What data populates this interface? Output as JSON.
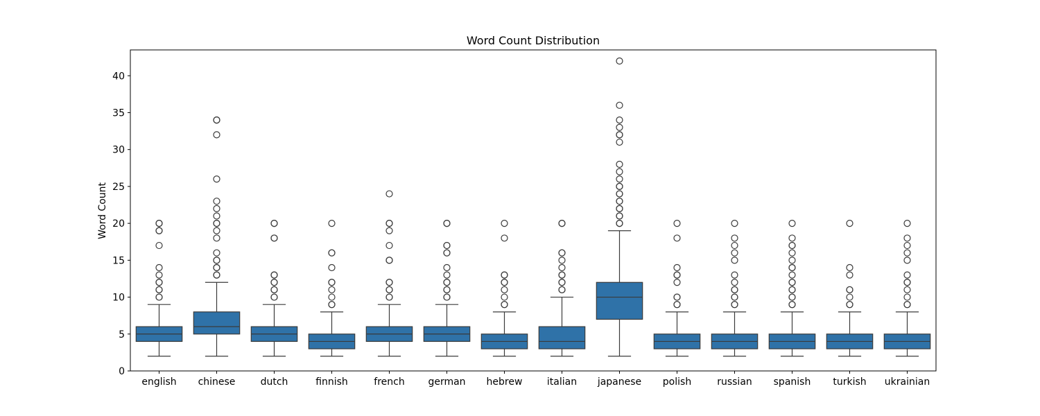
{
  "chart_data": {
    "type": "box",
    "title": "Word Count Distribution",
    "xlabel": "",
    "ylabel": "Word Count",
    "ylim": [
      0,
      43.5
    ],
    "yticks": [
      0,
      5,
      10,
      15,
      20,
      25,
      30,
      35,
      40
    ],
    "grid": false,
    "box_color": "#2f72a8",
    "line_color": "#3a3a3a",
    "categories": [
      "english",
      "chinese",
      "dutch",
      "finnish",
      "french",
      "german",
      "hebrew",
      "italian",
      "japanese",
      "polish",
      "russian",
      "spanish",
      "turkish",
      "ukrainian"
    ],
    "boxes": [
      {
        "whisker_low": 2,
        "q1": 4,
        "median": 5,
        "q3": 6,
        "whisker_high": 9,
        "outliers": [
          10,
          10,
          11,
          11,
          12,
          12,
          13,
          14,
          17,
          19,
          19,
          20,
          20
        ]
      },
      {
        "whisker_low": 2,
        "q1": 5,
        "median": 6,
        "q3": 8,
        "whisker_high": 12,
        "outliers": [
          13,
          13,
          14,
          14,
          15,
          15,
          16,
          18,
          19,
          20,
          20,
          21,
          22,
          23,
          26,
          32,
          34,
          34
        ]
      },
      {
        "whisker_low": 2,
        "q1": 4,
        "median": 5,
        "q3": 6,
        "whisker_high": 9,
        "outliers": [
          10,
          10,
          11,
          11,
          12,
          12,
          13,
          13,
          18,
          18,
          20,
          20
        ]
      },
      {
        "whisker_low": 2,
        "q1": 3,
        "median": 4,
        "q3": 5,
        "whisker_high": 8,
        "outliers": [
          9,
          9,
          10,
          11,
          12,
          12,
          14,
          16,
          16,
          20
        ]
      },
      {
        "whisker_low": 2,
        "q1": 4,
        "median": 5,
        "q3": 6,
        "whisker_high": 9,
        "outliers": [
          10,
          10,
          11,
          11,
          12,
          12,
          15,
          15,
          17,
          19,
          20,
          20,
          24
        ]
      },
      {
        "whisker_low": 2,
        "q1": 4,
        "median": 5,
        "q3": 6,
        "whisker_high": 9,
        "outliers": [
          10,
          10,
          11,
          11,
          12,
          12,
          13,
          14,
          16,
          16,
          17,
          17,
          20,
          20
        ]
      },
      {
        "whisker_low": 2,
        "q1": 3,
        "median": 4,
        "q3": 5,
        "whisker_high": 8,
        "outliers": [
          9,
          9,
          10,
          11,
          12,
          12,
          13,
          13,
          18,
          20
        ]
      },
      {
        "whisker_low": 2,
        "q1": 3,
        "median": 4,
        "q3": 6,
        "whisker_high": 10,
        "outliers": [
          11,
          11,
          12,
          12,
          13,
          13,
          14,
          15,
          16,
          16,
          20,
          20
        ]
      },
      {
        "whisker_low": 2,
        "q1": 7,
        "median": 10,
        "q3": 12,
        "whisker_high": 19,
        "outliers": [
          20,
          20,
          21,
          21,
          22,
          22,
          23,
          23,
          24,
          24,
          25,
          25,
          26,
          27,
          28,
          31,
          32,
          32,
          33,
          34,
          36,
          42
        ]
      },
      {
        "whisker_low": 2,
        "q1": 3,
        "median": 4,
        "q3": 5,
        "whisker_high": 8,
        "outliers": [
          9,
          9,
          10,
          10,
          12,
          13,
          13,
          14,
          18,
          20
        ]
      },
      {
        "whisker_low": 2,
        "q1": 3,
        "median": 4,
        "q3": 5,
        "whisker_high": 8,
        "outliers": [
          9,
          9,
          10,
          10,
          11,
          11,
          12,
          13,
          15,
          16,
          17,
          18,
          20
        ]
      },
      {
        "whisker_low": 2,
        "q1": 3,
        "median": 4,
        "q3": 5,
        "whisker_high": 8,
        "outliers": [
          9,
          9,
          10,
          10,
          11,
          11,
          12,
          12,
          13,
          14,
          14,
          15,
          16,
          17,
          17,
          18,
          20
        ]
      },
      {
        "whisker_low": 2,
        "q1": 3,
        "median": 4,
        "q3": 5,
        "whisker_high": 8,
        "outliers": [
          9,
          9,
          10,
          11,
          11,
          13,
          14,
          20
        ]
      },
      {
        "whisker_low": 2,
        "q1": 3,
        "median": 4,
        "q3": 5,
        "whisker_high": 8,
        "outliers": [
          9,
          9,
          10,
          11,
          12,
          12,
          13,
          15,
          16,
          17,
          18,
          20
        ]
      }
    ]
  }
}
